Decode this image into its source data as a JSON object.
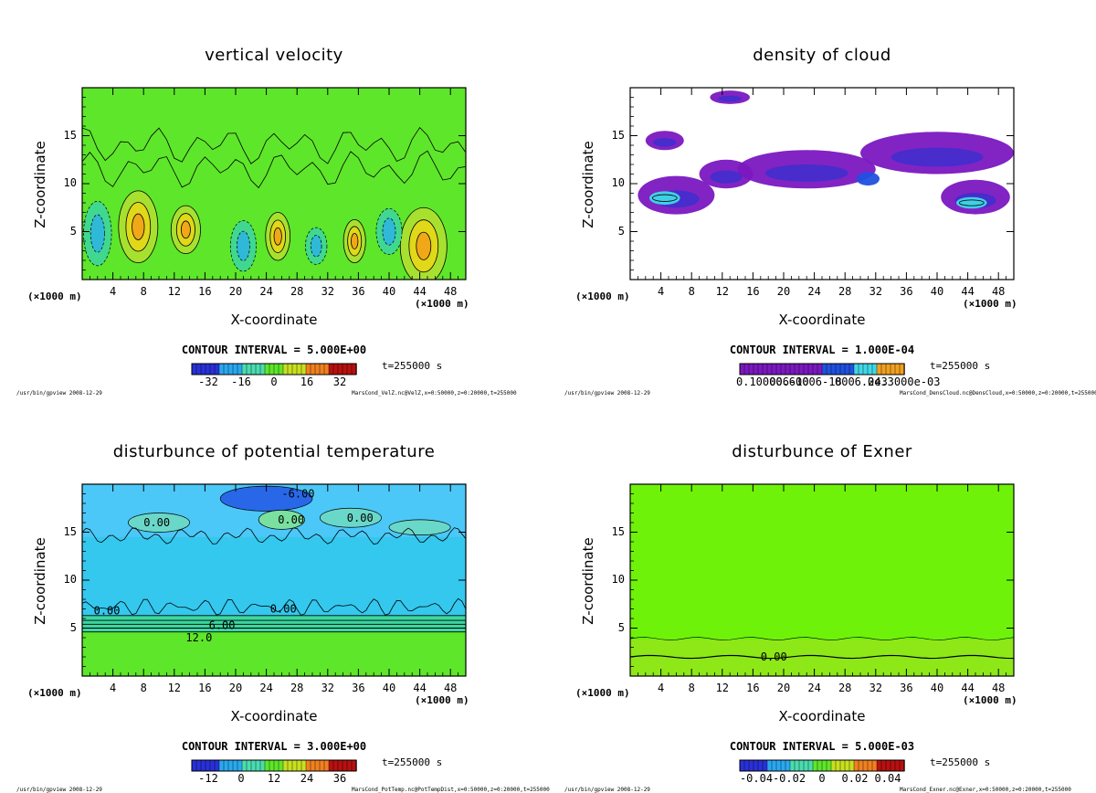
{
  "chart_data": [
    {
      "type": "heatmap",
      "title": "vertical velocity",
      "xlabel": "X-coordinate",
      "ylabel": "Z-coordinate",
      "x_unit": "(×1000 m)",
      "xlim": [
        0,
        50
      ],
      "ylim": [
        0,
        20
      ],
      "x_ticks": [
        "4",
        "8",
        "12",
        "16",
        "20",
        "24",
        "28",
        "32",
        "36",
        "40",
        "44",
        "48"
      ],
      "y_ticks": [
        "5",
        "10",
        "15"
      ],
      "contour_interval": "CONTOUR INTERVAL = 5.000E+00",
      "time": "t=255000 s",
      "colorbar_ticks": [
        "-32",
        "-16",
        "0",
        "16",
        "32"
      ],
      "footer_left": "/usr/bin/gpview  2008-12-29",
      "footer_right": "MarsCond_VelZ.nc@VelZ,x=0:50000,z=0:20000,t=255000",
      "background": "#5ee62a",
      "blobs": [
        {
          "x": 7.3,
          "y": 5.5,
          "rx": 1.6,
          "ry": 3.0,
          "kind": "pos"
        },
        {
          "x": 44.5,
          "y": 3.5,
          "rx": 1.9,
          "ry": 3.2,
          "kind": "pos"
        },
        {
          "x": 25.5,
          "y": 4.5,
          "rx": 1.0,
          "ry": 2.0,
          "kind": "pos"
        },
        {
          "x": 35.5,
          "y": 4.0,
          "rx": 0.9,
          "ry": 1.8,
          "kind": "pos"
        },
        {
          "x": 13.5,
          "y": 5.2,
          "rx": 1.2,
          "ry": 2.0,
          "kind": "pos"
        },
        {
          "x": 2.0,
          "y": 4.8,
          "rx": 1.3,
          "ry": 2.8,
          "kind": "neg"
        },
        {
          "x": 21.0,
          "y": 3.5,
          "rx": 1.2,
          "ry": 2.2,
          "kind": "neg"
        },
        {
          "x": 40.0,
          "y": 5.0,
          "rx": 1.2,
          "ry": 2.0,
          "kind": "neg"
        },
        {
          "x": 30.5,
          "y": 3.5,
          "rx": 1.0,
          "ry": 1.6,
          "kind": "neg"
        }
      ]
    },
    {
      "type": "heatmap",
      "title": "density of cloud",
      "xlabel": "X-coordinate",
      "ylabel": "Z-coordinate",
      "x_unit": "(×1000 m)",
      "xlim": [
        0,
        50
      ],
      "ylim": [
        0,
        20
      ],
      "x_ticks": [
        "4",
        "8",
        "12",
        "16",
        "20",
        "24",
        "28",
        "32",
        "36",
        "40",
        "44",
        "48"
      ],
      "y_ticks": [
        "5",
        "10",
        "15"
      ],
      "contour_interval": "CONTOUR INTERVAL = 1.000E-04",
      "time": "t=255000 s",
      "colorbar_ticks": [
        "0.10000.60",
        "006-10",
        "006-18",
        "0006.243",
        "0e.3000e-03"
      ],
      "footer_left": "/usr/bin/gpview  2008-12-29",
      "footer_right": "MarsCond_DensCloud.nc@DensCloud,x=0:50000,z=0:20000,t=255000",
      "background": "#ffffff",
      "blobs": [
        {
          "x": 6.0,
          "y": 8.8,
          "rx": 5.0,
          "ry": 2.0,
          "kind": "cloud"
        },
        {
          "x": 23.0,
          "y": 11.5,
          "rx": 9.0,
          "ry": 2.0,
          "kind": "cloud"
        },
        {
          "x": 40.0,
          "y": 13.2,
          "rx": 10.0,
          "ry": 2.2,
          "kind": "cloud"
        },
        {
          "x": 45.0,
          "y": 8.6,
          "rx": 4.5,
          "ry": 1.8,
          "kind": "cloud"
        },
        {
          "x": 12.5,
          "y": 11.0,
          "rx": 3.5,
          "ry": 1.5,
          "kind": "cloud"
        },
        {
          "x": 4.5,
          "y": 14.5,
          "rx": 2.5,
          "ry": 1.0,
          "kind": "cloud"
        },
        {
          "x": 13.0,
          "y": 19.0,
          "rx": 2.6,
          "ry": 0.7,
          "kind": "cloud"
        },
        {
          "x": 4.5,
          "y": 8.5,
          "rx": 2.0,
          "ry": 0.7,
          "kind": "core"
        },
        {
          "x": 44.5,
          "y": 8.0,
          "rx": 2.0,
          "ry": 0.6,
          "kind": "core"
        },
        {
          "x": 31.0,
          "y": 10.5,
          "rx": 1.5,
          "ry": 0.7,
          "kind": "mid"
        }
      ]
    },
    {
      "type": "heatmap",
      "title": "disturbunce of potential temperature",
      "xlabel": "X-coordinate",
      "ylabel": "Z-coordinate",
      "x_unit": "(×1000 m)",
      "xlim": [
        0,
        50
      ],
      "ylim": [
        0,
        20
      ],
      "x_ticks": [
        "4",
        "8",
        "12",
        "16",
        "20",
        "24",
        "28",
        "32",
        "36",
        "40",
        "44",
        "48"
      ],
      "y_ticks": [
        "5",
        "10",
        "15"
      ],
      "contour_interval": "CONTOUR INTERVAL = 3.000E+00",
      "time": "t=255000 s",
      "colorbar_ticks": [
        "-12",
        "0",
        "12",
        "24",
        "36"
      ],
      "contour_labels": [
        {
          "text": "-6.00",
          "x": 26.0,
          "y": 19.0
        },
        {
          "text": "0.00",
          "x": 8.0,
          "y": 16.0
        },
        {
          "text": "0.00",
          "x": 25.5,
          "y": 16.3
        },
        {
          "text": "0.00",
          "x": 34.5,
          "y": 16.5
        },
        {
          "text": "0.00",
          "x": 1.5,
          "y": 6.8
        },
        {
          "text": "0.00",
          "x": 24.5,
          "y": 7.0
        },
        {
          "text": "6.00",
          "x": 16.5,
          "y": 5.3
        },
        {
          "text": "12.0",
          "x": 13.5,
          "y": 4.0
        }
      ],
      "footer_left": "/usr/bin/gpview  2008-12-29",
      "footer_right": "MarsCond_PotTemp.nc@PotTempDist,x=0:50000,z=0:20000,t=255000",
      "background": "#34c8ee"
    },
    {
      "type": "heatmap",
      "title": "disturbunce of Exner",
      "xlabel": "X-coordinate",
      "ylabel": "Z-coordinate",
      "x_unit": "(×1000 m)",
      "xlim": [
        0,
        50
      ],
      "ylim": [
        0,
        20
      ],
      "x_ticks": [
        "4",
        "8",
        "12",
        "16",
        "20",
        "24",
        "28",
        "32",
        "36",
        "40",
        "44",
        "48"
      ],
      "y_ticks": [
        "5",
        "10",
        "15"
      ],
      "contour_interval": "CONTOUR INTERVAL = 5.000E-03",
      "time": "t=255000 s",
      "colorbar_ticks": [
        "-0.04",
        "-0.02",
        "0",
        "0.02",
        "0.04"
      ],
      "contour_labels": [
        {
          "text": "0.00",
          "x": 17.0,
          "y": 2.0
        }
      ],
      "footer_left": "/usr/bin/gpview  2008-12-29",
      "footer_right": "MarsCond_Exner.nc@Exner,x=0:50000,z=0:20000,t=255000",
      "background": "#6ef20a"
    }
  ]
}
